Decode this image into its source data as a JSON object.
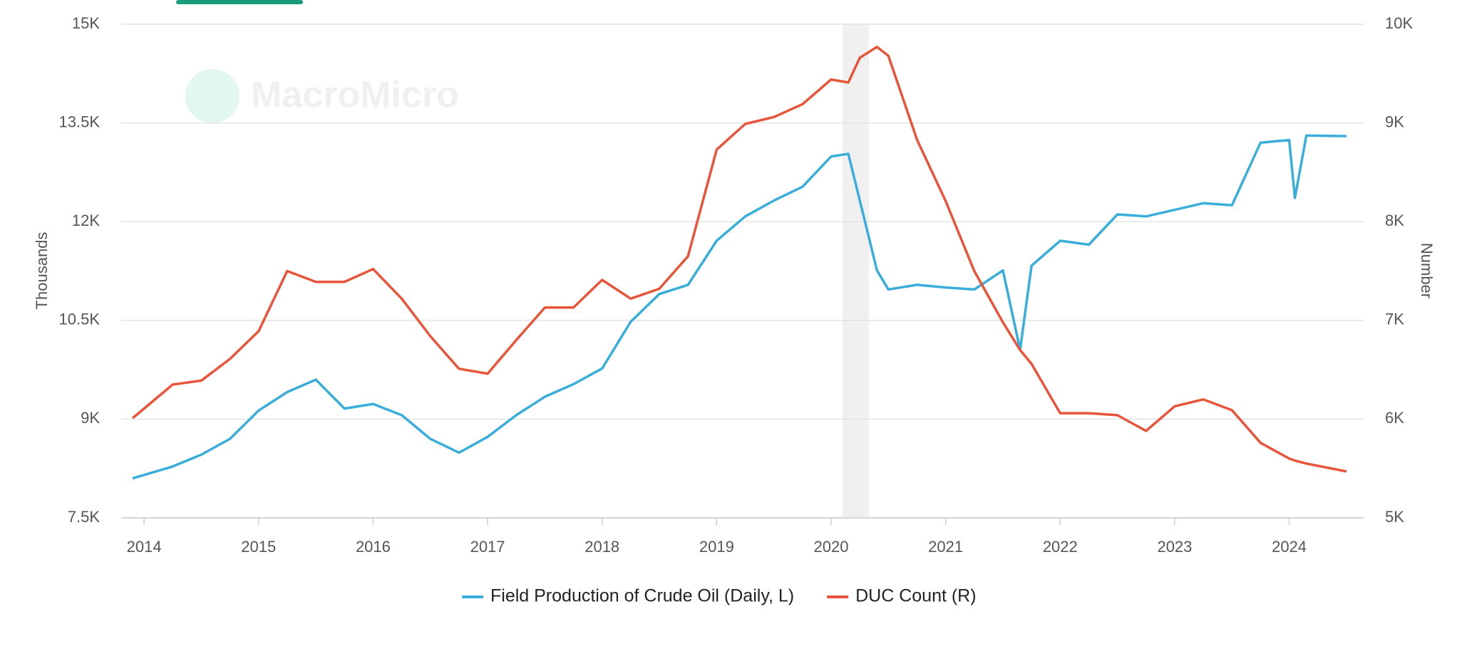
{
  "chart_data": {
    "type": "line",
    "watermark": "MacroMicro",
    "y_label": "Thousands",
    "y2_label": "Number",
    "x": [
      2013.9,
      2014.25,
      2014.5,
      2014.75,
      2015.0,
      2015.25,
      2015.5,
      2015.75,
      2016.0,
      2016.25,
      2016.5,
      2016.75,
      2017.0,
      2017.25,
      2017.5,
      2017.75,
      2018.0,
      2018.25,
      2018.5,
      2018.75,
      2019.0,
      2019.25,
      2019.5,
      2019.75,
      2020.0,
      2020.15,
      2020.25,
      2020.4,
      2020.5,
      2020.75,
      2021.0,
      2021.25,
      2021.5,
      2021.65,
      2021.75,
      2022.0,
      2022.25,
      2022.5,
      2022.75,
      2023.0,
      2023.25,
      2023.5,
      2023.75,
      2024.0,
      2024.05,
      2024.15,
      2024.5
    ],
    "series": [
      {
        "name": "Field Production of Crude Oil (Daily, L)",
        "color": "#3aaedb",
        "axis": "y",
        "values": [
          8100,
          8280,
          8460,
          8700,
          9130,
          9410,
          9600,
          9160,
          9230,
          9060,
          8700,
          8490,
          8730,
          9060,
          9340,
          9530,
          9770,
          10480,
          10900,
          11040,
          11710,
          12080,
          12320,
          12530,
          12990,
          13030,
          12320,
          11260,
          10970,
          11040,
          11000,
          10970,
          11260,
          10050,
          11330,
          11710,
          11650,
          12110,
          12080,
          12180,
          12280,
          12250,
          13200,
          13240,
          12360,
          13310,
          13300
        ]
      },
      {
        "name": "DUC Count (R)",
        "color": "#e8553a",
        "axis": "y2",
        "values": [
          6010,
          6350,
          6390,
          6610,
          6890,
          7500,
          7390,
          7390,
          7520,
          7220,
          6840,
          6510,
          6460,
          6800,
          7130,
          7130,
          7410,
          7220,
          7320,
          7650,
          8730,
          8990,
          9060,
          9190,
          9440,
          9410,
          9660,
          9770,
          9680,
          8830,
          8210,
          7500,
          6980,
          6700,
          6560,
          6060,
          6060,
          6040,
          5880,
          6130,
          6200,
          6090,
          5760,
          5600,
          5580,
          5550,
          5470
        ]
      }
    ],
    "shaded_x": [
      2020.1,
      2020.33
    ],
    "xlim": [
      2013.8,
      2024.65
    ],
    "xticks": [
      2014,
      2015,
      2016,
      2017,
      2018,
      2019,
      2020,
      2021,
      2022,
      2023,
      2024
    ],
    "ylim": [
      7500,
      15000
    ],
    "yticks": [
      {
        "value": 7500,
        "label": "7.5K"
      },
      {
        "value": 9000,
        "label": "9K"
      },
      {
        "value": 10500,
        "label": "10.5K"
      },
      {
        "value": 12000,
        "label": "12K"
      },
      {
        "value": 13500,
        "label": "13.5K"
      },
      {
        "value": 15000,
        "label": "15K"
      }
    ],
    "y2lim": [
      5000,
      10000
    ],
    "y2ticks": [
      {
        "value": 5000,
        "label": "5K"
      },
      {
        "value": 6000,
        "label": "6K"
      },
      {
        "value": 7000,
        "label": "7K"
      },
      {
        "value": 8000,
        "label": "8K"
      },
      {
        "value": 9000,
        "label": "9K"
      },
      {
        "value": 10000,
        "label": "10K"
      }
    ],
    "grid": true,
    "legend": "bottom"
  }
}
